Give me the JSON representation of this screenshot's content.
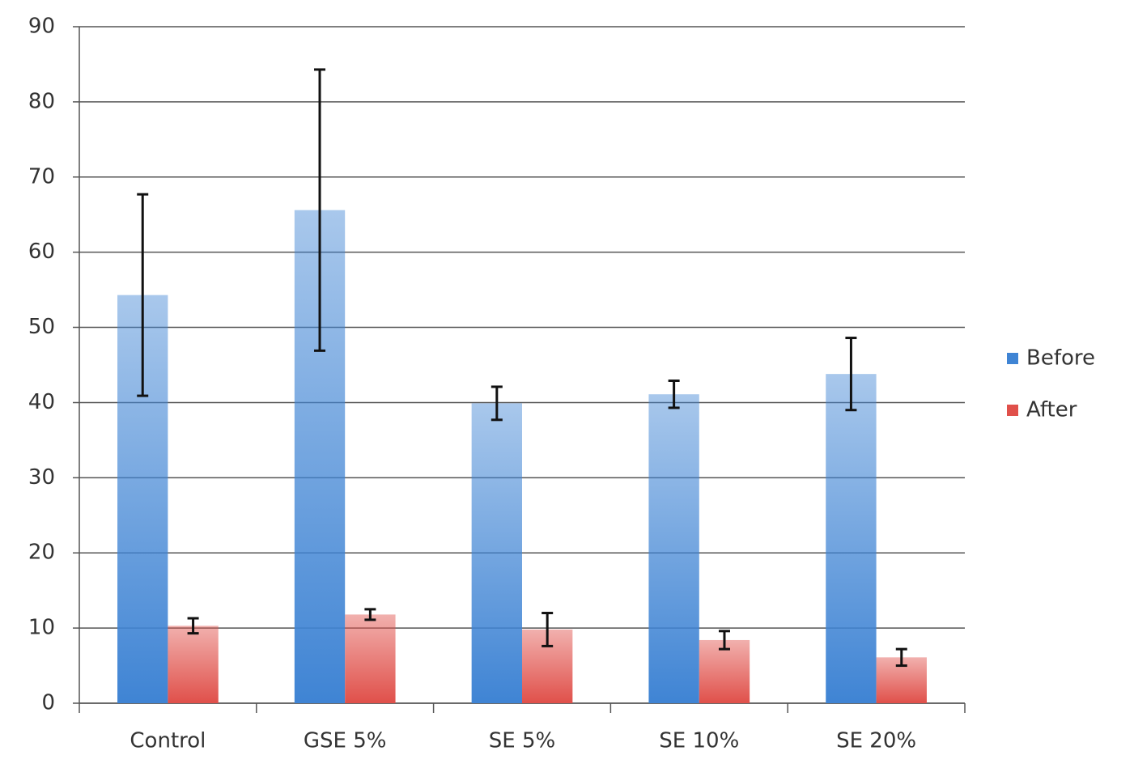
{
  "chart_data": {
    "type": "bar",
    "categories": [
      "Control",
      "GSE 5%",
      "SE 5%",
      "SE 10%",
      "SE 20%"
    ],
    "series": [
      {
        "name": "Before",
        "color": "#3f84d4",
        "values": [
          54.3,
          65.6,
          39.9,
          41.1,
          43.8
        ],
        "errors": [
          13.4,
          18.7,
          2.2,
          1.8,
          4.8
        ]
      },
      {
        "name": "After",
        "color": "#e0504a",
        "values": [
          10.3,
          11.8,
          9.8,
          8.4,
          6.1
        ],
        "errors": [
          1.0,
          0.7,
          2.2,
          1.2,
          1.1
        ]
      }
    ],
    "ylim": [
      0,
      90
    ],
    "yticks": [
      0,
      10,
      20,
      30,
      40,
      50,
      60,
      70,
      80,
      90
    ],
    "grid": true,
    "legend": "right"
  }
}
